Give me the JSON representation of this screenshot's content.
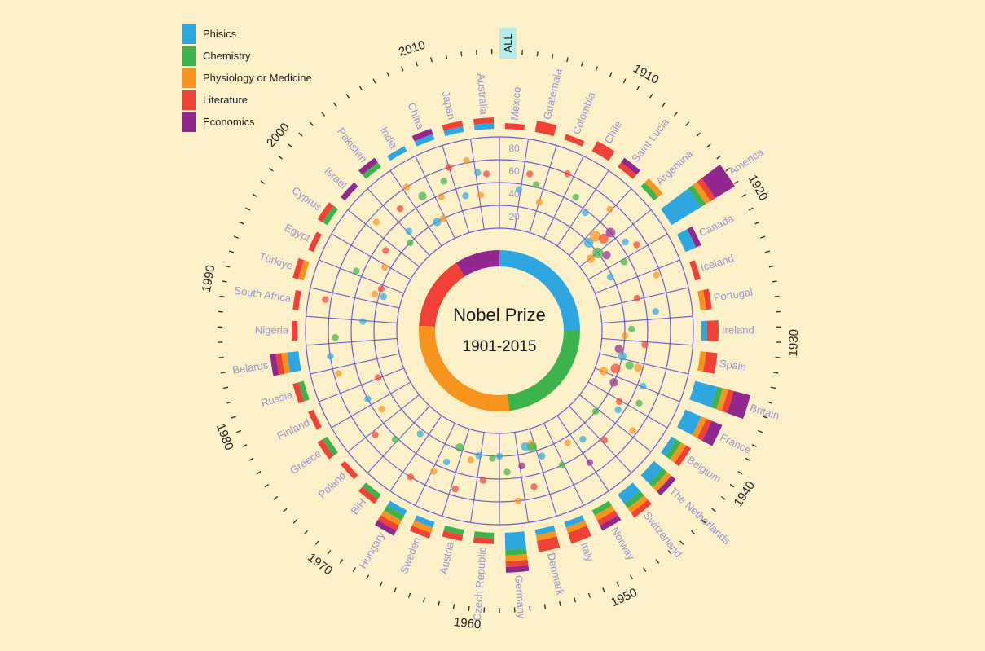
{
  "chart_data": {
    "type": "radial",
    "title": "Nobel Prize",
    "subtitle": "1901-2015",
    "all_button": "ALL",
    "categories": [
      {
        "name": "Phisics",
        "color": "#2ea7e0"
      },
      {
        "name": "Chemistry",
        "color": "#3cb44b"
      },
      {
        "name": "Physiology or Medicine",
        "color": "#f7941d"
      },
      {
        "name": "Literature",
        "color": "#ef4136"
      },
      {
        "name": "Economics",
        "color": "#92278f"
      }
    ],
    "share_ring": [
      {
        "name": "Phisics",
        "value": 0.25
      },
      {
        "name": "Chemistry",
        "value": 0.23
      },
      {
        "name": "Physiology or Medicine",
        "value": 0.28
      },
      {
        "name": "Literature",
        "value": 0.15
      },
      {
        "name": "Economics",
        "value": 0.09
      }
    ],
    "age_ticks": [
      "20",
      "40",
      "60",
      "80"
    ],
    "decades": [
      {
        "label": "1910",
        "year": 1910
      },
      {
        "label": "1920",
        "year": 1920
      },
      {
        "label": "1930",
        "year": 1930
      },
      {
        "label": "1940",
        "year": 1940
      },
      {
        "label": "1950",
        "year": 1950
      },
      {
        "label": "1960",
        "year": 1960
      },
      {
        "label": "1970",
        "year": 1970
      },
      {
        "label": "1980",
        "year": 1980
      },
      {
        "label": "1990",
        "year": 1990
      },
      {
        "label": "2000",
        "year": 2000
      },
      {
        "label": "2010",
        "year": 2010
      }
    ],
    "countries": [
      {
        "name": "Mexico",
        "counts": [
          0,
          0,
          0,
          1,
          0
        ]
      },
      {
        "name": "Guatemala",
        "counts": [
          0,
          0,
          0,
          2,
          0
        ]
      },
      {
        "name": "Colombia",
        "counts": [
          0,
          0,
          0,
          1,
          0
        ]
      },
      {
        "name": "Chile",
        "counts": [
          0,
          0,
          0,
          2,
          0
        ]
      },
      {
        "name": "Saint Lucia",
        "counts": [
          0,
          0,
          0,
          1,
          1
        ]
      },
      {
        "name": "Argentina",
        "counts": [
          0,
          1,
          1,
          0,
          0
        ]
      },
      {
        "name": "America",
        "counts": [
          6,
          1,
          1,
          1,
          4
        ]
      },
      {
        "name": "Canada",
        "counts": [
          2,
          0,
          0,
          0,
          1
        ]
      },
      {
        "name": "Iceland",
        "counts": [
          0,
          0,
          0,
          1,
          0
        ]
      },
      {
        "name": "Portugal",
        "counts": [
          0,
          0,
          1,
          1,
          0
        ]
      },
      {
        "name": "Ireland",
        "counts": [
          1,
          0,
          0,
          2,
          0
        ]
      },
      {
        "name": "Spain",
        "counts": [
          0,
          0,
          1,
          2,
          0
        ]
      },
      {
        "name": "Britain",
        "counts": [
          4,
          1,
          1,
          1,
          3
        ]
      },
      {
        "name": "France",
        "counts": [
          3,
          0,
          1,
          1,
          2
        ]
      },
      {
        "name": "Belgium",
        "counts": [
          1,
          1,
          1,
          1,
          0
        ]
      },
      {
        "name": "The Netherlands",
        "counts": [
          2,
          1,
          1,
          0,
          1
        ]
      },
      {
        "name": "Switzerland",
        "counts": [
          2,
          1,
          1,
          1,
          0
        ]
      },
      {
        "name": "Norway",
        "counts": [
          0,
          1,
          1,
          1,
          1
        ]
      },
      {
        "name": "Italy",
        "counts": [
          1,
          0,
          1,
          2,
          0
        ]
      },
      {
        "name": "Denmark",
        "counts": [
          1,
          0,
          1,
          2,
          0
        ]
      },
      {
        "name": "Germany",
        "counts": [
          3,
          1,
          1,
          1,
          1
        ]
      },
      {
        "name": "Czech Republic",
        "counts": [
          0,
          1,
          0,
          1,
          0
        ]
      },
      {
        "name": "Austria",
        "counts": [
          0,
          1,
          0,
          1,
          0
        ]
      },
      {
        "name": "Sweden",
        "counts": [
          1,
          0,
          1,
          1,
          0
        ]
      },
      {
        "name": "Hungary",
        "counts": [
          1,
          1,
          1,
          1,
          1
        ]
      },
      {
        "name": "BiH",
        "counts": [
          0,
          1,
          0,
          1,
          0
        ]
      },
      {
        "name": "Poland",
        "counts": [
          0,
          0,
          0,
          1,
          0
        ]
      },
      {
        "name": "Greece",
        "counts": [
          0,
          1,
          0,
          1,
          0
        ]
      },
      {
        "name": "Finland",
        "counts": [
          0,
          0,
          0,
          1,
          0
        ]
      },
      {
        "name": "Russia",
        "counts": [
          0,
          1,
          0,
          1,
          0
        ]
      },
      {
        "name": "Belarus",
        "counts": [
          2,
          0,
          1,
          1,
          1
        ]
      },
      {
        "name": "Nigeria",
        "counts": [
          0,
          0,
          0,
          1,
          0
        ]
      },
      {
        "name": "South Africa",
        "counts": [
          0,
          0,
          0,
          1,
          0
        ]
      },
      {
        "name": "Türkiye",
        "counts": [
          0,
          0,
          1,
          1,
          0
        ]
      },
      {
        "name": "Egypt",
        "counts": [
          0,
          0,
          0,
          1,
          0
        ]
      },
      {
        "name": "Cyprus",
        "counts": [
          0,
          1,
          0,
          1,
          0
        ]
      },
      {
        "name": "Israel",
        "counts": [
          0,
          0,
          0,
          0,
          1
        ]
      },
      {
        "name": "Pakistan",
        "counts": [
          0,
          1,
          0,
          0,
          1
        ]
      },
      {
        "name": "India",
        "counts": [
          1,
          0,
          0,
          0,
          0
        ]
      },
      {
        "name": "China",
        "counts": [
          1,
          0,
          0,
          0,
          1
        ]
      },
      {
        "name": "Japan",
        "counts": [
          1,
          0,
          0,
          1,
          0
        ]
      },
      {
        "name": "Australia",
        "counts": [
          1,
          0,
          0,
          1,
          0
        ]
      }
    ],
    "laureates": [
      {
        "year": 1903,
        "age": 45,
        "cat": 0,
        "n": 1
      },
      {
        "year": 1904,
        "age": 60,
        "cat": 3,
        "n": 1
      },
      {
        "year": 1905,
        "age": 52,
        "cat": 1,
        "n": 1
      },
      {
        "year": 1906,
        "age": 38,
        "cat": 2,
        "n": 1
      },
      {
        "year": 1908,
        "age": 70,
        "cat": 3,
        "n": 1
      },
      {
        "year": 1910,
        "age": 55,
        "cat": 1,
        "n": 1
      },
      {
        "year": 1912,
        "age": 48,
        "cat": 0,
        "n": 1
      },
      {
        "year": 1914,
        "age": 64,
        "cat": 2,
        "n": 1
      },
      {
        "year": 1915,
        "age": 30,
        "cat": 0,
        "n": 3
      },
      {
        "year": 1915,
        "age": 38,
        "cat": 2,
        "n": 4
      },
      {
        "year": 1916,
        "age": 42,
        "cat": 3,
        "n": 3
      },
      {
        "year": 1916,
        "age": 50,
        "cat": 4,
        "n": 3
      },
      {
        "year": 1917,
        "age": 30,
        "cat": 1,
        "n": 4
      },
      {
        "year": 1917,
        "age": 22,
        "cat": 2,
        "n": 2
      },
      {
        "year": 1918,
        "age": 55,
        "cat": 0,
        "n": 1
      },
      {
        "year": 1918,
        "age": 35,
        "cat": 4,
        "n": 2
      },
      {
        "year": 1919,
        "age": 62,
        "cat": 3,
        "n": 1
      },
      {
        "year": 1920,
        "age": 45,
        "cat": 1,
        "n": 1
      },
      {
        "year": 1921,
        "age": 28,
        "cat": 0,
        "n": 1
      },
      {
        "year": 1923,
        "age": 66,
        "cat": 2,
        "n": 1
      },
      {
        "year": 1925,
        "age": 44,
        "cat": 3,
        "n": 1
      },
      {
        "year": 1927,
        "age": 58,
        "cat": 0,
        "n": 1
      },
      {
        "year": 1929,
        "age": 36,
        "cat": 1,
        "n": 1
      },
      {
        "year": 1930,
        "age": 30,
        "cat": 2,
        "n": 1
      },
      {
        "year": 1931,
        "age": 48,
        "cat": 3,
        "n": 1
      },
      {
        "year": 1932,
        "age": 26,
        "cat": 4,
        "n": 2
      },
      {
        "year": 1933,
        "age": 30,
        "cat": 0,
        "n": 2
      },
      {
        "year": 1934,
        "age": 38,
        "cat": 1,
        "n": 2
      },
      {
        "year": 1934,
        "age": 46,
        "cat": 2,
        "n": 2
      },
      {
        "year": 1935,
        "age": 27,
        "cat": 3,
        "n": 3
      },
      {
        "year": 1936,
        "age": 55,
        "cat": 0,
        "n": 1
      },
      {
        "year": 1936,
        "age": 18,
        "cat": 2,
        "n": 2
      },
      {
        "year": 1937,
        "age": 30,
        "cat": 4,
        "n": 2
      },
      {
        "year": 1938,
        "age": 58,
        "cat": 1,
        "n": 1
      },
      {
        "year": 1939,
        "age": 42,
        "cat": 3,
        "n": 1
      },
      {
        "year": 1940,
        "age": 45,
        "cat": 0,
        "n": 1
      },
      {
        "year": 1941,
        "age": 66,
        "cat": 2,
        "n": 1
      },
      {
        "year": 1942,
        "age": 30,
        "cat": 1,
        "n": 1
      },
      {
        "year": 1944,
        "age": 53,
        "cat": 3,
        "n": 1
      },
      {
        "year": 1946,
        "age": 40,
        "cat": 0,
        "n": 1
      },
      {
        "year": 1947,
        "age": 60,
        "cat": 4,
        "n": 1
      },
      {
        "year": 1948,
        "age": 35,
        "cat": 2,
        "n": 1
      },
      {
        "year": 1950,
        "age": 50,
        "cat": 1,
        "n": 1
      },
      {
        "year": 1952,
        "age": 36,
        "cat": 0,
        "n": 1
      },
      {
        "year": 1953,
        "age": 24,
        "cat": 2,
        "n": 3
      },
      {
        "year": 1953,
        "age": 26,
        "cat": 1,
        "n": 3
      },
      {
        "year": 1954,
        "age": 24,
        "cat": 0,
        "n": 2
      },
      {
        "year": 1954,
        "age": 60,
        "cat": 3,
        "n": 1
      },
      {
        "year": 1955,
        "age": 40,
        "cat": 4,
        "n": 1
      },
      {
        "year": 1956,
        "age": 70,
        "cat": 2,
        "n": 1
      },
      {
        "year": 1957,
        "age": 44,
        "cat": 1,
        "n": 1
      },
      {
        "year": 1958,
        "age": 30,
        "cat": 0,
        "n": 1
      },
      {
        "year": 1959,
        "age": 32,
        "cat": 1,
        "n": 1
      },
      {
        "year": 1960,
        "age": 52,
        "cat": 3,
        "n": 1
      },
      {
        "year": 1961,
        "age": 31,
        "cat": 0,
        "n": 1
      },
      {
        "year": 1962,
        "age": 36,
        "cat": 2,
        "n": 1
      },
      {
        "year": 1963,
        "age": 64,
        "cat": 3,
        "n": 1
      },
      {
        "year": 1964,
        "age": 28,
        "cat": 1,
        "n": 2
      },
      {
        "year": 1965,
        "age": 44,
        "cat": 0,
        "n": 1
      },
      {
        "year": 1966,
        "age": 56,
        "cat": 2,
        "n": 1
      },
      {
        "year": 1968,
        "age": 70,
        "cat": 3,
        "n": 1
      },
      {
        "year": 1970,
        "age": 34,
        "cat": 0,
        "n": 1
      },
      {
        "year": 1972,
        "age": 52,
        "cat": 1,
        "n": 1
      },
      {
        "year": 1974,
        "age": 62,
        "cat": 3,
        "n": 1
      },
      {
        "year": 1976,
        "age": 44,
        "cat": 2,
        "n": 1
      },
      {
        "year": 1978,
        "age": 50,
        "cat": 0,
        "n": 1
      },
      {
        "year": 1980,
        "age": 34,
        "cat": 3,
        "n": 1
      },
      {
        "year": 1982,
        "age": 66,
        "cat": 2,
        "n": 1
      },
      {
        "year": 1984,
        "age": 70,
        "cat": 0,
        "n": 1
      },
      {
        "year": 1986,
        "age": 64,
        "cat": 1,
        "n": 1
      },
      {
        "year": 1988,
        "age": 40,
        "cat": 0,
        "n": 1
      },
      {
        "year": 1990,
        "age": 75,
        "cat": 3,
        "n": 1
      },
      {
        "year": 1992,
        "age": 26,
        "cat": 0,
        "n": 1
      },
      {
        "year": 1992,
        "age": 34,
        "cat": 2,
        "n": 1
      },
      {
        "year": 1993,
        "age": 30,
        "cat": 3,
        "n": 1
      },
      {
        "year": 1994,
        "age": 56,
        "cat": 1,
        "n": 1
      },
      {
        "year": 1996,
        "age": 35,
        "cat": 2,
        "n": 1
      },
      {
        "year": 1998,
        "age": 42,
        "cat": 3,
        "n": 1
      },
      {
        "year": 2000,
        "age": 64,
        "cat": 2,
        "n": 1
      },
      {
        "year": 2001,
        "age": 30,
        "cat": 1,
        "n": 1
      },
      {
        "year": 2002,
        "age": 38,
        "cat": 0,
        "n": 1
      },
      {
        "year": 2003,
        "age": 58,
        "cat": 3,
        "n": 1
      },
      {
        "year": 2005,
        "age": 70,
        "cat": 2,
        "n": 1
      },
      {
        "year": 2006,
        "age": 30,
        "cat": 0,
        "n": 2
      },
      {
        "year": 2006,
        "age": 56,
        "cat": 1,
        "n": 2
      },
      {
        "year": 2007,
        "age": 30,
        "cat": 2,
        "n": 1
      },
      {
        "year": 2008,
        "age": 48,
        "cat": 2,
        "n": 1
      },
      {
        "year": 2009,
        "age": 60,
        "cat": 1,
        "n": 1
      },
      {
        "year": 2010,
        "age": 70,
        "cat": 3,
        "n": 1
      },
      {
        "year": 2011,
        "age": 42,
        "cat": 0,
        "n": 1
      },
      {
        "year": 2012,
        "age": 72,
        "cat": 2,
        "n": 1
      },
      {
        "year": 2013,
        "age": 60,
        "cat": 0,
        "n": 1
      },
      {
        "year": 2013,
        "age": 40,
        "cat": 2,
        "n": 1
      },
      {
        "year": 2014,
        "age": 58,
        "cat": 3,
        "n": 1
      }
    ]
  }
}
